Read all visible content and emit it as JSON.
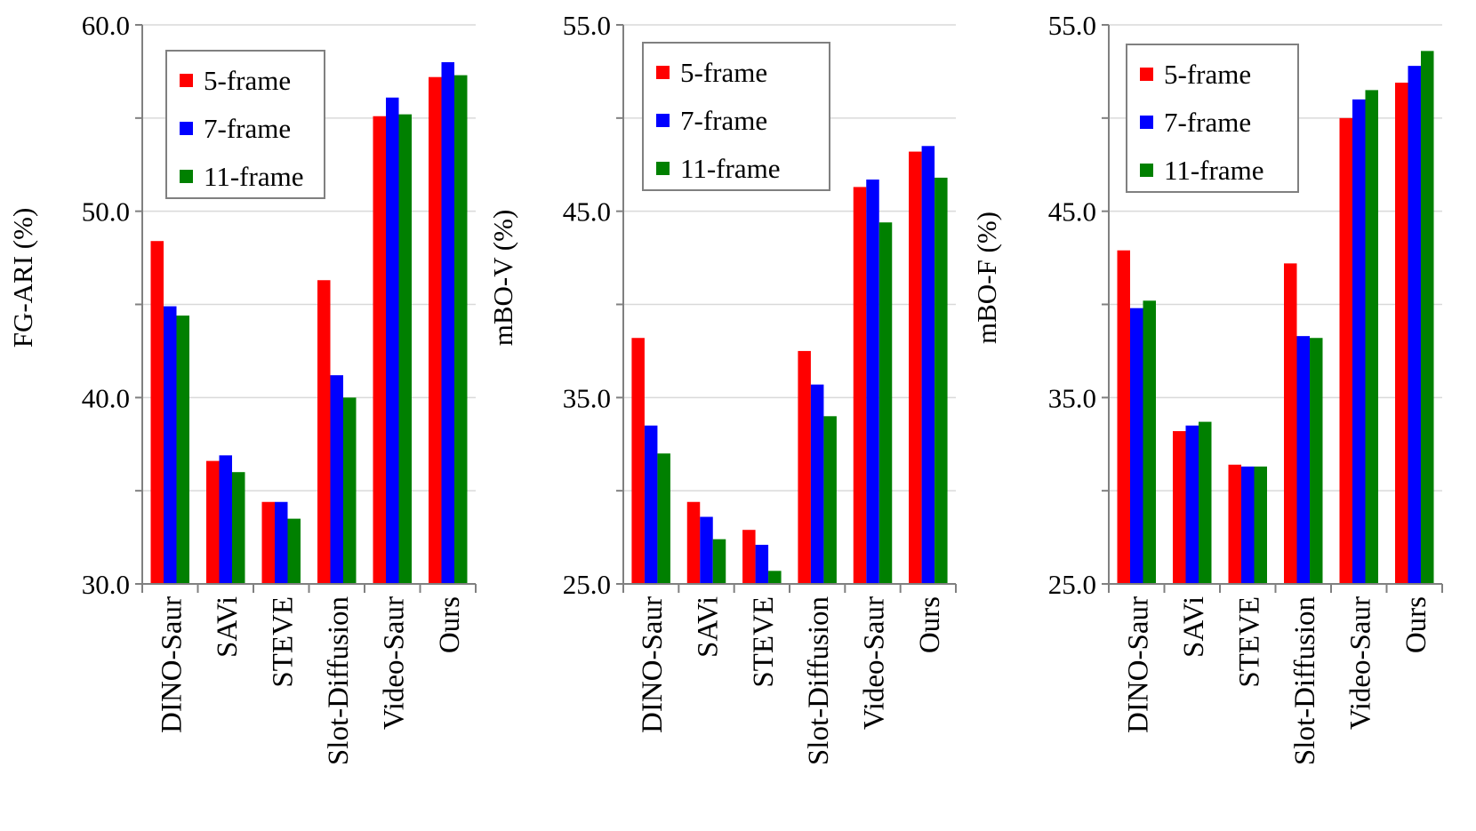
{
  "colors": {
    "5-frame": "#ff0000",
    "7-frame": "#0000ff",
    "11-frame": "#008000",
    "grid": "#d9d9d9",
    "axis": "#808080",
    "legend_border": "#808080"
  },
  "chart_data": [
    {
      "type": "bar",
      "title": "",
      "xlabel": "",
      "ylabel": "FG-ARI (%)",
      "ylim": [
        30,
        60
      ],
      "yticks": [
        "30.0",
        "40.0",
        "50.0",
        "60.0"
      ],
      "minor_gridlines": [
        35,
        45,
        55
      ],
      "categories": [
        "DINO-Saur",
        "SAVi",
        "STEVE",
        "Slot-Diffusion",
        "Video-Saur",
        "Ours"
      ],
      "series": [
        {
          "name": "5-frame",
          "values": [
            48.4,
            36.6,
            34.4,
            46.3,
            55.1,
            57.2
          ]
        },
        {
          "name": "7-frame",
          "values": [
            44.9,
            36.9,
            34.4,
            41.2,
            56.1,
            58.0
          ]
        },
        {
          "name": "11-frame",
          "values": [
            44.4,
            36.0,
            33.5,
            40.0,
            55.2,
            57.3
          ]
        }
      ],
      "legend": "top-left"
    },
    {
      "type": "bar",
      "title": "",
      "xlabel": "",
      "ylabel": "mBO-V (%)",
      "ylim": [
        25,
        55
      ],
      "yticks": [
        "25.0",
        "35.0",
        "45.0",
        "55.0"
      ],
      "minor_gridlines": [
        30,
        40,
        50
      ],
      "categories": [
        "DINO-Saur",
        "SAVi",
        "STEVE",
        "Slot-Diffusion",
        "Video-Saur",
        "Ours"
      ],
      "series": [
        {
          "name": "5-frame",
          "values": [
            38.2,
            29.4,
            27.9,
            37.5,
            46.3,
            48.2
          ]
        },
        {
          "name": "7-frame",
          "values": [
            33.5,
            28.6,
            27.1,
            35.7,
            46.7,
            48.5
          ]
        },
        {
          "name": "11-frame",
          "values": [
            32.0,
            27.4,
            25.7,
            34.0,
            44.4,
            46.8
          ]
        }
      ],
      "legend": "top-left"
    },
    {
      "type": "bar",
      "title": "",
      "xlabel": "",
      "ylabel": "mBO-F (%)",
      "ylim": [
        25,
        55
      ],
      "yticks": [
        "25.0",
        "35.0",
        "45.0",
        "55.0"
      ],
      "minor_gridlines": [
        30,
        40,
        50
      ],
      "categories": [
        "DINO-Saur",
        "SAVi",
        "STEVE",
        "Slot-Diffusion",
        "Video-Saur",
        "Ours"
      ],
      "series": [
        {
          "name": "5-frame",
          "values": [
            42.9,
            33.2,
            31.4,
            42.2,
            50.0,
            51.9
          ]
        },
        {
          "name": "7-frame",
          "values": [
            39.8,
            33.5,
            31.3,
            38.3,
            51.0,
            52.8
          ]
        },
        {
          "name": "11-frame",
          "values": [
            40.2,
            33.7,
            31.3,
            38.2,
            51.5,
            53.6
          ]
        }
      ],
      "legend": "top-left"
    }
  ]
}
